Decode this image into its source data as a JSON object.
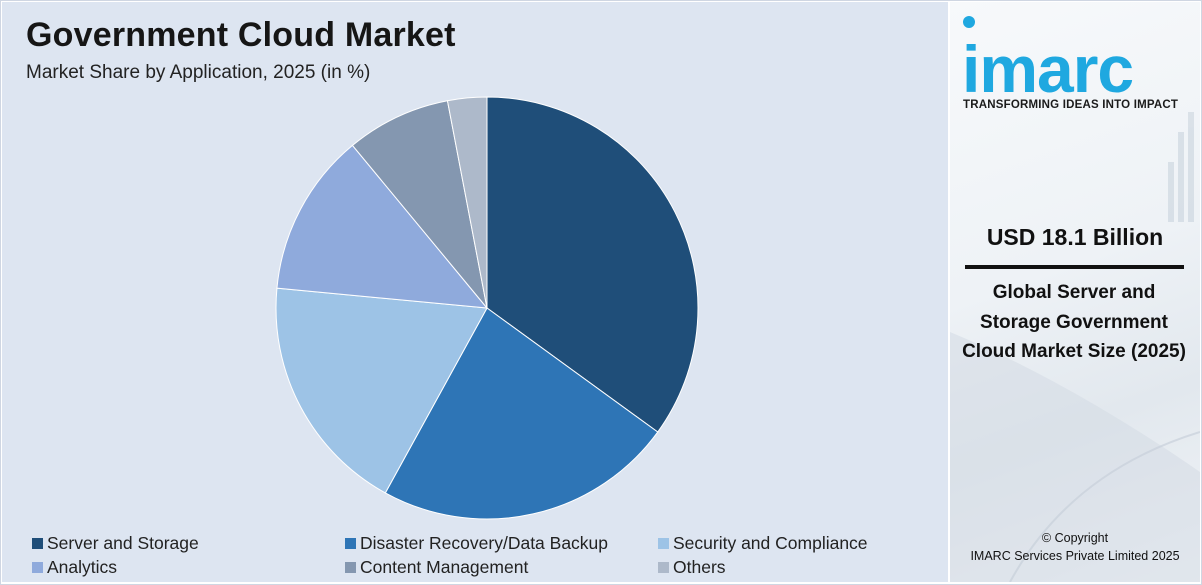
{
  "chart_data": {
    "type": "pie",
    "title": "Government Cloud Market",
    "subtitle": "Market Share by Application, 2025 (in %)",
    "categories": [
      "Server and Storage",
      "Disaster Recovery/Data Backup",
      "Security and Compliance",
      "Analytics",
      "Content Management",
      "Others"
    ],
    "values": [
      35,
      23,
      18.5,
      12.5,
      8,
      3
    ],
    "colors": [
      "#1f4e79",
      "#2e75b6",
      "#9dc3e6",
      "#8faadc",
      "#8497b0",
      "#adb9ca"
    ],
    "legend_placement": "bottom"
  },
  "branding": {
    "logo_text": "imarc",
    "tagline": "TRANSFORMING IDEAS INTO IMPACT",
    "accent_color": "#1fa8e0"
  },
  "highlight": {
    "value": "USD 18.1 Billion",
    "caption": "Global Server and Storage Government Cloud Market Size (2025)"
  },
  "footer": {
    "copyright_line1": "© Copyright",
    "copyright_line2": "IMARC Services Private Limited 2025"
  }
}
